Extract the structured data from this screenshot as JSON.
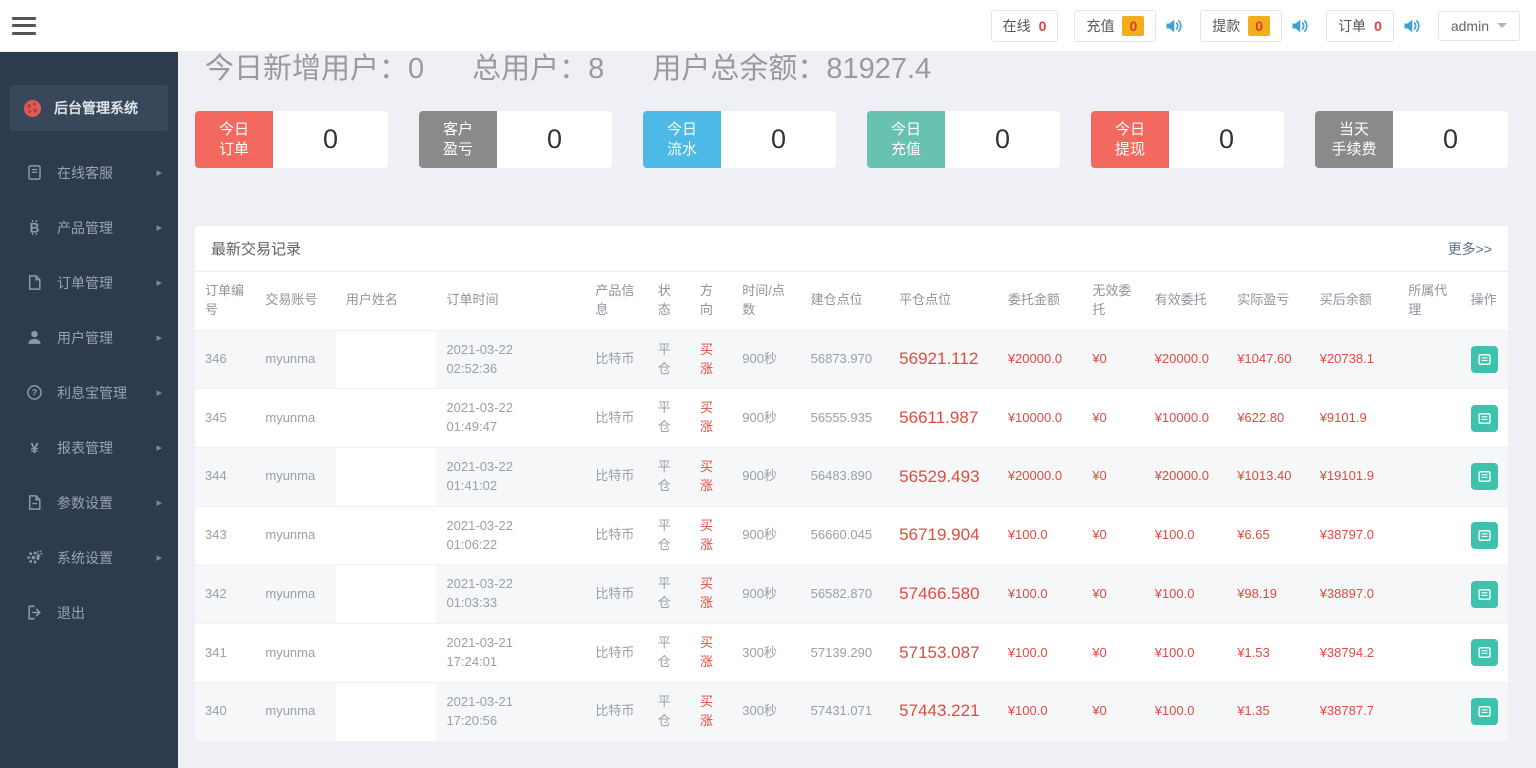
{
  "topbar": {
    "badges": [
      {
        "label": "在线",
        "count": "0",
        "badge_style": "plain",
        "has_speaker": false
      },
      {
        "label": "充值",
        "count": "0",
        "badge_style": "orange",
        "has_speaker": true
      },
      {
        "label": "提款",
        "count": "0",
        "badge_style": "orange",
        "has_speaker": true
      },
      {
        "label": "订单",
        "count": "0",
        "badge_style": "plain",
        "has_speaker": true
      }
    ],
    "user": "admin"
  },
  "sidebar": {
    "brand": "后台管理系统",
    "items": [
      {
        "label": "在线客服",
        "icon": "book-icon",
        "has_arrow": true
      },
      {
        "label": "产品管理",
        "icon": "bitcoin-icon",
        "has_arrow": true
      },
      {
        "label": "订单管理",
        "icon": "orders-icon",
        "has_arrow": true
      },
      {
        "label": "用户管理",
        "icon": "user-icon",
        "has_arrow": true
      },
      {
        "label": "利息宝管理",
        "icon": "interest-icon",
        "has_arrow": true
      },
      {
        "label": "报表管理",
        "icon": "yen-icon",
        "has_arrow": true
      },
      {
        "label": "参数设置",
        "icon": "params-icon",
        "has_arrow": true
      },
      {
        "label": "系统设置",
        "icon": "gear-icon",
        "has_arrow": true
      },
      {
        "label": "退出",
        "icon": "logout-icon",
        "has_arrow": false
      }
    ]
  },
  "summary": {
    "new_users_label": "今日新增用户：",
    "new_users": "0",
    "total_users_label": "总用户：",
    "total_users": "8",
    "total_balance_label": "用户总余额：",
    "total_balance": "81927.4"
  },
  "cards": [
    {
      "label": "今日\n订单",
      "value": "0",
      "color": "#f4695f"
    },
    {
      "label": "客户\n盈亏",
      "value": "0",
      "color": "#8a8a8a"
    },
    {
      "label": "今日\n流水",
      "value": "0",
      "color": "#4cb9e6"
    },
    {
      "label": "今日\n充值",
      "value": "0",
      "color": "#68c2af"
    },
    {
      "label": "今日\n提现",
      "value": "0",
      "color": "#f4695f"
    },
    {
      "label": "当天\n手续费",
      "value": "0",
      "color": "#8a8a8a"
    }
  ],
  "trades": {
    "title": "最新交易记录",
    "more_label": "更多>>",
    "columns": [
      "订单编号",
      "交易账号",
      "用户姓名",
      "订单时间",
      "产品信息",
      "状态",
      "方向",
      "时间/点数",
      "建仓点位",
      "平仓点位",
      "委托金额",
      "无效委托",
      "有效委托",
      "实际盈亏",
      "买后余额",
      "所属代理",
      "操作"
    ],
    "rows": [
      {
        "id": "346",
        "account": "myunma",
        "name": "",
        "time": "2021-03-22\n02:52:36",
        "product": "比特币",
        "status": "平仓",
        "direction": "买涨",
        "duration": "900秒",
        "open": "56873.970",
        "close": "56921.112",
        "amount": "¥20000.0",
        "invalid": "¥0",
        "valid": "¥20000.0",
        "profit": "¥1047.60",
        "balance": "¥20738.1",
        "agent": ""
      },
      {
        "id": "345",
        "account": "myunma",
        "name": "",
        "time": "2021-03-22\n01:49:47",
        "product": "比特币",
        "status": "平仓",
        "direction": "买涨",
        "duration": "900秒",
        "open": "56555.935",
        "close": "56611.987",
        "amount": "¥10000.0",
        "invalid": "¥0",
        "valid": "¥10000.0",
        "profit": "¥622.80",
        "balance": "¥9101.9",
        "agent": ""
      },
      {
        "id": "344",
        "account": "myunma",
        "name": "",
        "time": "2021-03-22\n01:41:02",
        "product": "比特币",
        "status": "平仓",
        "direction": "买涨",
        "duration": "900秒",
        "open": "56483.890",
        "close": "56529.493",
        "amount": "¥20000.0",
        "invalid": "¥0",
        "valid": "¥20000.0",
        "profit": "¥1013.40",
        "balance": "¥19101.9",
        "agent": ""
      },
      {
        "id": "343",
        "account": "myunma",
        "name": "",
        "time": "2021-03-22\n01:06:22",
        "product": "比特币",
        "status": "平仓",
        "direction": "买涨",
        "duration": "900秒",
        "open": "56660.045",
        "close": "56719.904",
        "amount": "¥100.0",
        "invalid": "¥0",
        "valid": "¥100.0",
        "profit": "¥6.65",
        "balance": "¥38797.0",
        "agent": ""
      },
      {
        "id": "342",
        "account": "myunma",
        "name": "",
        "time": "2021-03-22\n01:03:33",
        "product": "比特币",
        "status": "平仓",
        "direction": "买涨",
        "duration": "900秒",
        "open": "56582.870",
        "close": "57466.580",
        "amount": "¥100.0",
        "invalid": "¥0",
        "valid": "¥100.0",
        "profit": "¥98.19",
        "balance": "¥38897.0",
        "agent": ""
      },
      {
        "id": "341",
        "account": "myunma",
        "name": "",
        "time": "2021-03-21\n17:24:01",
        "product": "比特币",
        "status": "平仓",
        "direction": "买涨",
        "duration": "300秒",
        "open": "57139.290",
        "close": "57153.087",
        "amount": "¥100.0",
        "invalid": "¥0",
        "valid": "¥100.0",
        "profit": "¥1.53",
        "balance": "¥38794.2",
        "agent": ""
      },
      {
        "id": "340",
        "account": "myunma",
        "name": "",
        "time": "2021-03-21\n17:20:56",
        "product": "比特币",
        "status": "平仓",
        "direction": "买涨",
        "duration": "300秒",
        "open": "57431.071",
        "close": "57443.221",
        "amount": "¥100.0",
        "invalid": "¥0",
        "valid": "¥100.0",
        "profit": "¥1.35",
        "balance": "¥38787.7",
        "agent": ""
      }
    ]
  }
}
